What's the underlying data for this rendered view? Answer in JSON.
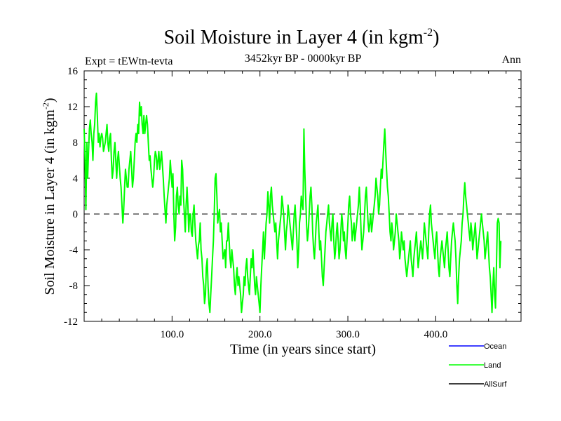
{
  "chart_data": {
    "type": "line",
    "title_main": "Soil Moisture in Layer 4 (in kgm",
    "title_sup": "-2",
    "title_close": ")",
    "subtitle": "3452kyr BP - 0000kyr BP",
    "expt_label": "Expt = tEWtn-tevta",
    "season": "Ann",
    "xlabel": "Time (in years since start)",
    "ylabel_main": "Soil Moisture in Layer 4 (in kgm",
    "ylabel_sup": "-2",
    "ylabel_close": ")",
    "xlim": [
      0,
      497
    ],
    "ylim": [
      -12,
      16
    ],
    "x_ticks": [
      100,
      200,
      300,
      400
    ],
    "x_tick_labels": [
      "100.0",
      "200.0",
      "300.0",
      "400.0"
    ],
    "y_ticks": [
      16,
      12,
      8,
      4,
      0,
      -4,
      -8,
      -12
    ],
    "y_tick_labels": [
      "16",
      "12",
      "8",
      "4",
      "0",
      "-4",
      "-8",
      "-12"
    ],
    "zero_line": true,
    "legend": [
      {
        "name": "Ocean",
        "color": "#0000ff"
      },
      {
        "name": "Land",
        "color": "#00ff00"
      },
      {
        "name": "AllSurf",
        "color": "#000000"
      }
    ],
    "series": [
      {
        "name": "Land",
        "color": "#00ff00",
        "x_start": 0,
        "x_step": 1,
        "values": [
          9.5,
          6,
          0.5,
          8,
          4,
          7,
          9.5,
          10.5,
          9,
          8,
          6,
          9,
          10,
          12.5,
          13.5,
          11,
          8,
          9,
          7.5,
          8.5,
          9,
          8.5,
          7,
          7.5,
          8,
          9,
          10,
          8,
          7,
          8.5,
          9,
          6,
          4,
          5,
          7,
          8,
          6,
          4,
          6,
          7,
          5.5,
          4,
          3,
          1,
          -1,
          0.5,
          3,
          5,
          4,
          3,
          3,
          5,
          6,
          7,
          5,
          3,
          4,
          6,
          8,
          9,
          8,
          10,
          9,
          12.5,
          11,
          12,
          10,
          9,
          11,
          9,
          10,
          11,
          10,
          8,
          6,
          6.5,
          5,
          4,
          3,
          4,
          6,
          7,
          6.5,
          5,
          6,
          7,
          5,
          6,
          7,
          5.5,
          4,
          2,
          0.5,
          -1,
          1,
          2,
          3,
          4,
          6,
          4.5,
          3,
          4.5,
          0,
          -3,
          -1.5,
          2,
          3,
          1,
          0,
          2,
          1,
          6,
          5,
          2,
          0,
          -2,
          1,
          3,
          1,
          -2,
          0,
          0,
          -2,
          -2.5,
          0,
          1,
          -1,
          -3,
          -4,
          -5,
          -3.5,
          -3,
          -1,
          -4,
          -5,
          -7,
          -8,
          -10,
          -9,
          -6,
          -5,
          -8,
          -10,
          -11,
          -9,
          -7,
          -5,
          -3,
          0,
          4,
          4.5,
          2,
          -1,
          0,
          0.5,
          -2,
          -1,
          -3,
          -5,
          -4.5,
          -4,
          -6,
          -3,
          -3,
          -1,
          -3,
          -5,
          -6,
          -4,
          -5,
          -6,
          -8,
          -9,
          -7,
          -6,
          -8,
          -7,
          -8,
          -9,
          -11,
          -10,
          -9,
          -7,
          -8,
          -6,
          -5,
          -7,
          -8,
          -9,
          -7,
          -5,
          -6,
          -4,
          -6,
          -8,
          -9,
          -7,
          -8,
          -9,
          -10,
          -11,
          -8,
          -6,
          -4,
          -2,
          -5,
          -3,
          -1,
          0,
          2.5,
          1,
          -1,
          2,
          3,
          1,
          0,
          -1,
          -2,
          -1,
          -3,
          -5,
          -3,
          -2,
          -1,
          0,
          2,
          1,
          0,
          -2,
          -4,
          -2,
          -1,
          1,
          0,
          -1,
          -2,
          -3,
          -4,
          -2,
          0,
          1,
          -1,
          -3,
          -6,
          -4,
          -1,
          0,
          2,
          1,
          0.5,
          9.5,
          5,
          2,
          -1,
          -3,
          -2,
          0,
          2,
          3,
          1,
          -2,
          -4,
          -5,
          -3,
          -1,
          0,
          1,
          -2,
          -4,
          -3,
          -5,
          -7,
          -8,
          -6,
          -4,
          -2,
          -1,
          0,
          1,
          -1,
          -2,
          -3,
          -1,
          0,
          -3,
          -5,
          -4,
          -2,
          -1,
          -3,
          -5,
          -4,
          -2,
          0,
          -1,
          -3,
          -2,
          -4,
          -5,
          -3,
          -1,
          1,
          2,
          0,
          -1,
          -3,
          -2,
          -1,
          -3,
          -2,
          -1,
          0,
          1,
          3,
          1,
          -2,
          -4,
          -3,
          -2,
          0,
          2,
          3,
          1,
          -1,
          -2,
          -1,
          0,
          -2,
          -1,
          0,
          1,
          2,
          4,
          3,
          2,
          0,
          1,
          3,
          5,
          4,
          6,
          8,
          9.5,
          7,
          5,
          3,
          2,
          0,
          -2,
          -3,
          -1,
          -2,
          -4,
          -3,
          -2,
          0,
          -1,
          -2,
          -3,
          -5,
          -4,
          -2,
          -3,
          -4,
          -3,
          -5,
          -6,
          -7,
          -6,
          -5,
          -4,
          -3,
          -5,
          -6,
          -7,
          -5,
          -4,
          -3,
          -2,
          -4,
          -6,
          -5,
          -4,
          -3,
          -4,
          -5,
          -3,
          -1,
          -2,
          -3,
          -4,
          -5,
          -2,
          0,
          1,
          -1,
          -2,
          -3,
          -4,
          -5,
          -3,
          -2,
          -4,
          -6,
          -7,
          -5,
          -4,
          -3,
          -4,
          -5,
          -6,
          -4,
          -3,
          -2,
          -4,
          -6,
          -7,
          -5,
          -3,
          -2,
          -1,
          -2,
          -3,
          -5,
          -8,
          -10,
          -7,
          -5,
          -4,
          -3,
          -1,
          0,
          2,
          3.5,
          2,
          1,
          0,
          -1,
          -2,
          -3,
          -1,
          -2,
          -4,
          -3,
          -2,
          -1,
          -3,
          -5,
          -4,
          -3,
          -2,
          -1,
          0,
          -1,
          -2,
          -3,
          -5,
          -4,
          -3,
          -2,
          -4,
          -6,
          -7,
          -9,
          -11,
          -8,
          -6,
          -9,
          -10.5,
          -6,
          -1,
          -0.5,
          -1,
          -6,
          -3
        ]
      }
    ]
  }
}
